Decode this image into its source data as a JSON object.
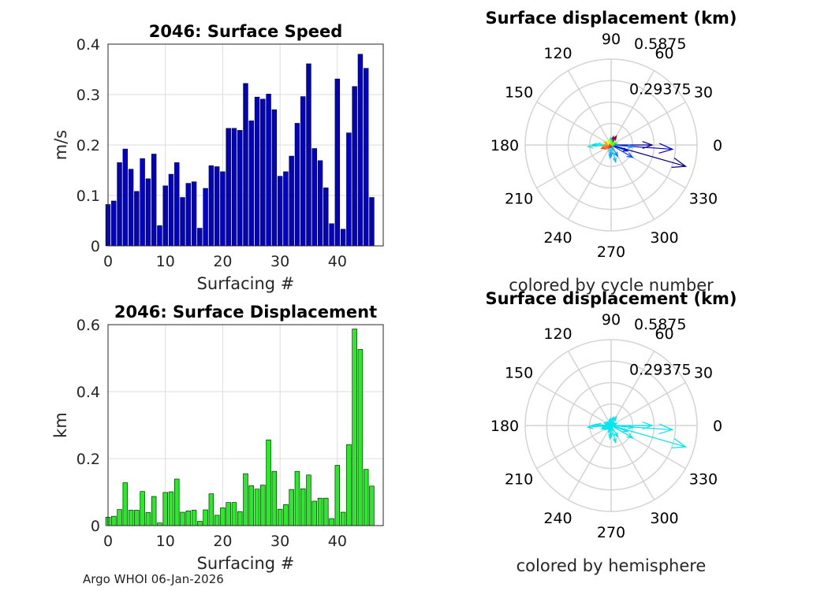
{
  "footer": "Argo WHOI 06-Jan-2026",
  "chart_data": [
    {
      "type": "bar",
      "title": "2046: Surface Speed",
      "xlabel": "Surfacing #",
      "ylabel": "m/s",
      "xlim": [
        0,
        48
      ],
      "ylim": [
        0,
        0.4
      ],
      "xticks": [
        "0",
        "10",
        "20",
        "30",
        "40"
      ],
      "yticks": [
        "0",
        "0.1",
        "0.2",
        "0.3",
        "0.4"
      ],
      "color": "#0000cc",
      "x": [
        0,
        1,
        2,
        3,
        4,
        5,
        6,
        7,
        8,
        9,
        10,
        11,
        12,
        13,
        14,
        15,
        16,
        17,
        18,
        19,
        20,
        21,
        22,
        23,
        24,
        25,
        26,
        27,
        28,
        29,
        30,
        31,
        32,
        33,
        34,
        35,
        36,
        37,
        38,
        39,
        40,
        41,
        42,
        43,
        44,
        45,
        46
      ],
      "values": [
        0.082,
        0.089,
        0.165,
        0.192,
        0.152,
        0.108,
        0.173,
        0.133,
        0.182,
        0.04,
        0.119,
        0.142,
        0.165,
        0.096,
        0.124,
        0.127,
        0.035,
        0.114,
        0.159,
        0.157,
        0.147,
        0.233,
        0.233,
        0.229,
        0.322,
        0.248,
        0.295,
        0.291,
        0.301,
        0.27,
        0.138,
        0.147,
        0.178,
        0.243,
        0.296,
        0.361,
        0.193,
        0.169,
        0.115,
        0.044,
        0.331,
        0.033,
        0.224,
        0.316,
        0.38,
        0.352,
        0.096
      ]
    },
    {
      "type": "bar",
      "title": "2046: Surface Displacement",
      "xlabel": "Surfacing #",
      "ylabel": "km",
      "xlim": [
        0,
        48
      ],
      "ylim": [
        0,
        0.6
      ],
      "xticks": [
        "0",
        "10",
        "20",
        "30",
        "40"
      ],
      "yticks": [
        "0",
        "0.2",
        "0.4",
        "0.6"
      ],
      "color": "#22ee22",
      "x": [
        0,
        1,
        2,
        3,
        4,
        5,
        6,
        7,
        8,
        9,
        10,
        11,
        12,
        13,
        14,
        15,
        16,
        17,
        18,
        19,
        20,
        21,
        22,
        23,
        24,
        25,
        26,
        27,
        28,
        29,
        30,
        31,
        32,
        33,
        34,
        35,
        36,
        37,
        38,
        39,
        40,
        41,
        42,
        43,
        44,
        45,
        46
      ],
      "values": [
        0.025,
        0.028,
        0.048,
        0.128,
        0.046,
        0.046,
        0.102,
        0.039,
        0.087,
        0.008,
        0.099,
        0.101,
        0.139,
        0.04,
        0.044,
        0.046,
        0.013,
        0.047,
        0.095,
        0.031,
        0.053,
        0.069,
        0.069,
        0.042,
        0.155,
        0.119,
        0.109,
        0.121,
        0.256,
        0.162,
        0.049,
        0.063,
        0.108,
        0.162,
        0.11,
        0.151,
        0.073,
        0.082,
        0.082,
        0.021,
        0.18,
        0.04,
        0.242,
        0.587,
        0.526,
        0.168,
        0.118
      ]
    },
    {
      "type": "polar",
      "title": "Surface displacement (km)",
      "subtitle": "colored by cycle number",
      "rmax": 0.5875,
      "rtick_labels": [
        "0.29375",
        "0.5875"
      ],
      "angle_labels": [
        "0",
        "30",
        "60",
        "90",
        "120",
        "150",
        "180",
        "210",
        "240",
        "270",
        "300",
        "330"
      ],
      "vectors": [
        {
          "angle": 0,
          "r": 0.28,
          "color": "#00008b"
        },
        {
          "angle": 356,
          "r": 0.42,
          "color": "#0000cd"
        },
        {
          "angle": 344,
          "r": 0.53,
          "color": "#000080"
        },
        {
          "angle": 330,
          "r": 0.17,
          "color": "#0050ff"
        },
        {
          "angle": 340,
          "r": 0.12,
          "color": "#0000ff"
        },
        {
          "angle": 355,
          "r": 0.15,
          "color": "#1e90ff"
        },
        {
          "angle": 300,
          "r": 0.09,
          "color": "#0080ff"
        },
        {
          "angle": 285,
          "r": 0.12,
          "color": "#00bfff"
        },
        {
          "angle": 265,
          "r": 0.09,
          "color": "#00bfff"
        },
        {
          "angle": 270,
          "r": 0.08,
          "color": "#1e90ff"
        },
        {
          "angle": 250,
          "r": 0.05,
          "color": "#40e0d0"
        },
        {
          "angle": 180,
          "r": 0.13,
          "color": "#00ced1"
        },
        {
          "angle": 176,
          "r": 0.1,
          "color": "#00ffff"
        },
        {
          "angle": 184,
          "r": 0.16,
          "color": "#40e0d0"
        },
        {
          "angle": 200,
          "r": 0.07,
          "color": "#ff4500"
        },
        {
          "angle": 190,
          "r": 0.06,
          "color": "#ff8c00"
        },
        {
          "angle": 160,
          "r": 0.05,
          "color": "#ffa500"
        },
        {
          "angle": 140,
          "r": 0.04,
          "color": "#ffff00"
        },
        {
          "angle": 60,
          "r": 0.07,
          "color": "#8b0000"
        },
        {
          "angle": 75,
          "r": 0.06,
          "color": "#800080"
        },
        {
          "angle": 95,
          "r": 0.05,
          "color": "#00ff7f"
        },
        {
          "angle": 110,
          "r": 0.04,
          "color": "#adff2f"
        },
        {
          "angle": 20,
          "r": 0.04,
          "color": "#00ff00"
        },
        {
          "angle": 230,
          "r": 0.03,
          "color": "#ff0000"
        },
        {
          "angle": 215,
          "r": 0.05,
          "color": "#ff6347"
        },
        {
          "angle": 40,
          "r": 0.03,
          "color": "#7fff00"
        }
      ]
    },
    {
      "type": "polar",
      "title": "Surface displacement (km)",
      "subtitle": "colored by hemisphere",
      "rmax": 0.5875,
      "rtick_labels": [
        "0.29375",
        "0.5875"
      ],
      "angle_labels": [
        "0",
        "30",
        "60",
        "90",
        "120",
        "150",
        "180",
        "210",
        "240",
        "270",
        "300",
        "330"
      ],
      "vector_color": "#00e5ee",
      "vectors": [
        {
          "angle": 0,
          "r": 0.28
        },
        {
          "angle": 356,
          "r": 0.42
        },
        {
          "angle": 344,
          "r": 0.53
        },
        {
          "angle": 330,
          "r": 0.17
        },
        {
          "angle": 340,
          "r": 0.12
        },
        {
          "angle": 355,
          "r": 0.15
        },
        {
          "angle": 300,
          "r": 0.09
        },
        {
          "angle": 285,
          "r": 0.12
        },
        {
          "angle": 265,
          "r": 0.09
        },
        {
          "angle": 270,
          "r": 0.08
        },
        {
          "angle": 250,
          "r": 0.05
        },
        {
          "angle": 180,
          "r": 0.13
        },
        {
          "angle": 176,
          "r": 0.1
        },
        {
          "angle": 184,
          "r": 0.16
        },
        {
          "angle": 200,
          "r": 0.07
        },
        {
          "angle": 190,
          "r": 0.06
        },
        {
          "angle": 160,
          "r": 0.05
        },
        {
          "angle": 140,
          "r": 0.04
        },
        {
          "angle": 60,
          "r": 0.07
        },
        {
          "angle": 75,
          "r": 0.06
        },
        {
          "angle": 95,
          "r": 0.05
        },
        {
          "angle": 110,
          "r": 0.04
        },
        {
          "angle": 20,
          "r": 0.04
        },
        {
          "angle": 230,
          "r": 0.03
        },
        {
          "angle": 215,
          "r": 0.05
        },
        {
          "angle": 40,
          "r": 0.03
        }
      ]
    }
  ]
}
